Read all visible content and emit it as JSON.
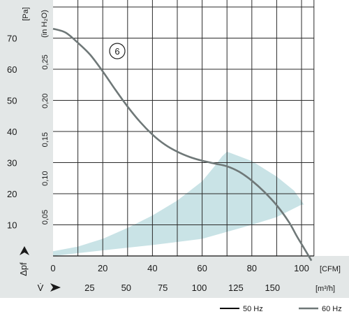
{
  "chart_data": {
    "type": "line",
    "curve_marker": "6",
    "y_unit_pa": "[Pa]",
    "y_unit_inh2o": "(in H₂O)",
    "y_label": "Δpf",
    "x_unit_cfm": "[CFM]",
    "x_unit_m3h": "[m³/h]",
    "x_label": "V̇",
    "x_ticks_cfm": [
      0,
      20,
      40,
      60,
      80,
      100
    ],
    "x_ticks_m3h": [
      "25",
      "50",
      "75",
      "100",
      "125",
      "150"
    ],
    "y_ticks_pa": [
      10,
      20,
      30,
      40,
      50,
      60,
      70
    ],
    "y_ticks_inh2o": [
      "0,05",
      "0,10",
      "0,15",
      "0,20",
      "0,25"
    ],
    "y_ticks_inh2o_values": [
      0.05,
      0.1,
      0.15,
      0.2,
      0.25
    ],
    "xlim_cfm": [
      0,
      105
    ],
    "ylim_pa": [
      0,
      75
    ],
    "grid": true,
    "legend_position": "bottom-right",
    "series": [
      {
        "name": "50 Hz",
        "color": "#000000",
        "x": [],
        "y": []
      },
      {
        "name": "60 Hz",
        "color": "#6f7878",
        "x": [
          0,
          5,
          10,
          15,
          20,
          25,
          30,
          35,
          40,
          45,
          50,
          55,
          60,
          65,
          70,
          75,
          80,
          85,
          90,
          95,
          98,
          101,
          104
        ],
        "y": [
          73,
          71.8,
          68.5,
          64.6,
          59.3,
          53.5,
          48.0,
          43.1,
          39.0,
          35.8,
          33.5,
          31.8,
          30.6,
          29.7,
          28.8,
          27.0,
          24.2,
          20.6,
          16.3,
          10.8,
          6.5,
          2.5,
          -1.5
        ]
      }
    ],
    "area": {
      "color": "#c9e3e6",
      "upper": {
        "x": [
          0,
          10,
          20,
          30,
          40,
          50,
          60,
          65,
          68,
          70
        ],
        "y": [
          1.5,
          3.0,
          5.5,
          9.0,
          13.0,
          17.8,
          24.0,
          28.8,
          32.0,
          33.5
        ]
      },
      "lower": {
        "x": [
          0,
          20,
          40,
          60,
          80,
          90,
          100
        ],
        "y": [
          0,
          1.8,
          3.5,
          5.5,
          10.0,
          12.5,
          16.5
        ]
      },
      "right": {
        "x": [
          70,
          80,
          90,
          97,
          101
        ],
        "y": [
          33.5,
          30.5,
          25.5,
          21.0,
          16.5
        ]
      }
    }
  }
}
